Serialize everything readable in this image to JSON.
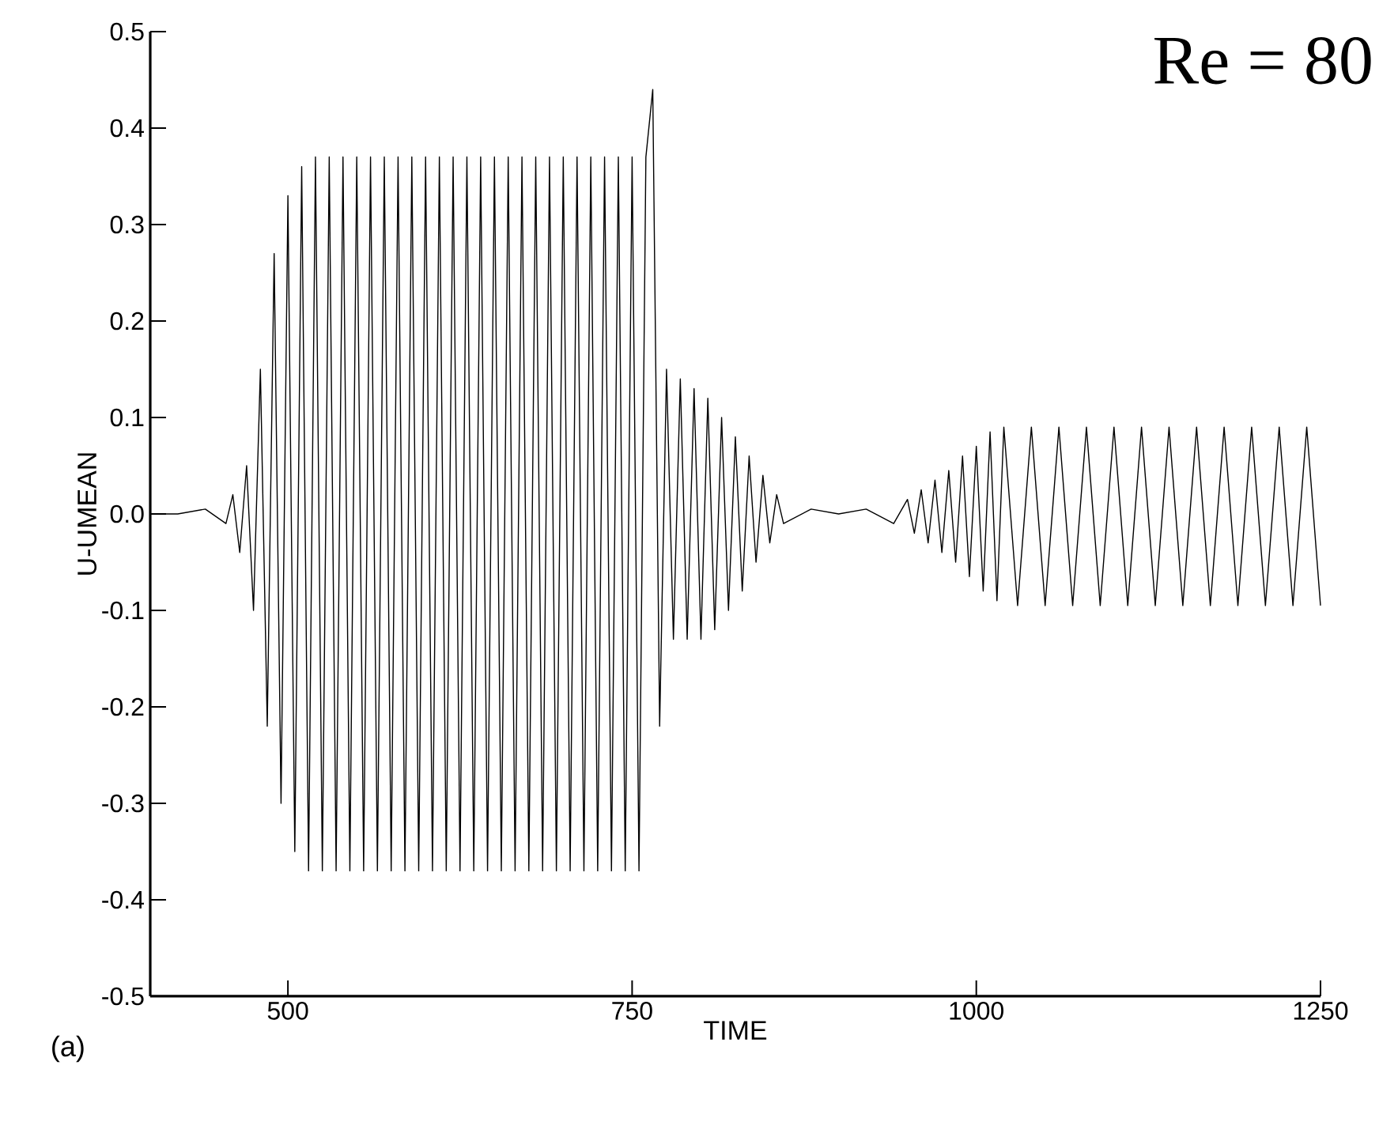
{
  "chart_data": {
    "type": "line",
    "xlabel": "TIME",
    "ylabel": "U-UMEAN",
    "annotations": [
      "Re = 80",
      "(a)"
    ],
    "xlim": [
      400,
      1250
    ],
    "ylim": [
      -0.5,
      0.5
    ],
    "xticks": [
      500,
      750,
      1000,
      1250
    ],
    "yticks": [
      -0.5,
      -0.4,
      -0.3,
      -0.2,
      -0.1,
      {
        "value": 0,
        "label": "0.0"
      },
      0.1,
      0.2,
      0.3,
      0.4,
      0.5
    ],
    "marker": "none",
    "line_style": "solid",
    "series": [
      {
        "color": "#000000",
        "x": [
          400,
          420,
          440,
          455,
          460,
          465,
          470,
          475,
          480,
          485,
          490,
          495,
          500,
          505,
          510,
          515,
          520,
          525,
          530,
          535,
          540,
          545,
          550,
          555,
          560,
          565,
          570,
          575,
          580,
          585,
          590,
          595,
          600,
          605,
          610,
          615,
          620,
          625,
          630,
          635,
          640,
          645,
          650,
          655,
          660,
          665,
          670,
          675,
          680,
          685,
          690,
          695,
          700,
          705,
          710,
          715,
          720,
          725,
          730,
          735,
          740,
          745,
          750,
          755,
          760,
          765,
          770,
          775,
          780,
          785,
          790,
          795,
          800,
          805,
          810,
          815,
          820,
          825,
          830,
          835,
          840,
          845,
          850,
          855,
          860,
          880,
          900,
          920,
          940,
          950,
          955,
          960,
          965,
          970,
          975,
          980,
          985,
          990,
          995,
          1000,
          1005,
          1010,
          1015,
          1020,
          1030,
          1040,
          1050,
          1060,
          1070,
          1080,
          1090,
          1100,
          1110,
          1120,
          1130,
          1140,
          1150,
          1160,
          1170,
          1180,
          1190,
          1200,
          1210,
          1220,
          1230,
          1240,
          1250
        ],
        "values": [
          0,
          0,
          0.005,
          -0.01,
          0.02,
          -0.04,
          0.05,
          -0.1,
          0.15,
          -0.22,
          0.27,
          -0.3,
          0.33,
          -0.35,
          0.36,
          -0.37,
          0.37,
          -0.37,
          0.37,
          -0.37,
          0.37,
          -0.37,
          0.37,
          -0.37,
          0.37,
          -0.37,
          0.37,
          -0.37,
          0.37,
          -0.37,
          0.37,
          -0.37,
          0.37,
          -0.37,
          0.37,
          -0.37,
          0.37,
          -0.37,
          0.37,
          -0.37,
          0.37,
          -0.37,
          0.37,
          -0.37,
          0.37,
          -0.37,
          0.37,
          -0.37,
          0.37,
          -0.37,
          0.37,
          -0.37,
          0.37,
          -0.37,
          0.37,
          -0.37,
          0.37,
          -0.37,
          0.37,
          -0.37,
          0.37,
          -0.37,
          0.37,
          -0.37,
          0.37,
          0.44,
          -0.22,
          0.15,
          -0.13,
          0.14,
          -0.13,
          0.13,
          -0.13,
          0.12,
          -0.12,
          0.1,
          -0.1,
          0.08,
          -0.08,
          0.06,
          -0.05,
          0.04,
          -0.03,
          0.02,
          -0.01,
          0.005,
          0,
          0.005,
          -0.01,
          0.015,
          -0.02,
          0.025,
          -0.03,
          0.035,
          -0.04,
          0.045,
          -0.05,
          0.06,
          -0.065,
          0.07,
          -0.08,
          0.085,
          -0.09,
          0.09,
          -0.095,
          0.09,
          -0.095,
          0.09,
          -0.095,
          0.09,
          -0.095,
          0.09,
          -0.095,
          0.09,
          -0.095,
          0.09,
          -0.095,
          0.09,
          -0.095,
          0.09,
          -0.095,
          0.09,
          -0.095,
          0.09,
          -0.095,
          0.09,
          -0.095
        ]
      }
    ]
  }
}
